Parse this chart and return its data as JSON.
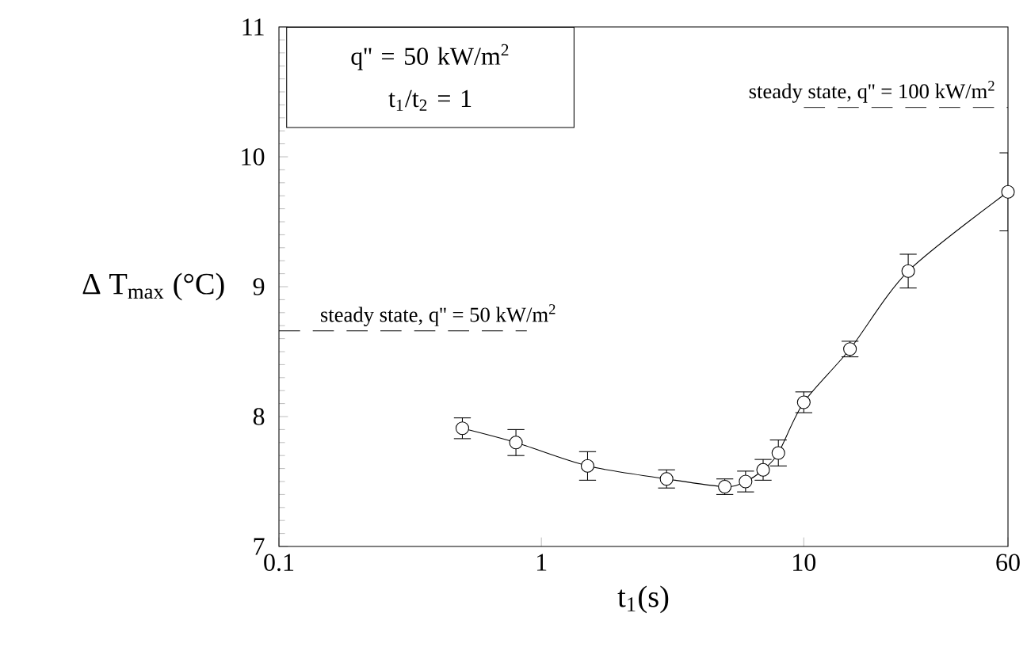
{
  "chart_data": {
    "type": "line",
    "xlabel": "t$_{1}$(s)",
    "ylabel": "Δ T$_{max}$ (°C)",
    "annotations": [
      "q'' = 50 kW/m$^{2}$",
      "t$_{1}$/t$_{2}$ = 1",
      "steady state, q'' = 50 kW/m$^{2}$",
      "steady state, q'' = 100 kW/m$^{2}$"
    ],
    "x": [
      0.5,
      0.8,
      1.5,
      3,
      5,
      6,
      7,
      8,
      10,
      15,
      25,
      60
    ],
    "series": [
      {
        "color": "#000000",
        "values": [
          7.91,
          7.8,
          7.62,
          7.52,
          7.46,
          7.5,
          7.59,
          7.72,
          8.11,
          8.52,
          9.12,
          9.73
        ],
        "errors": [
          0.08,
          0.1,
          0.11,
          0.07,
          0.06,
          0.08,
          0.08,
          0.1,
          0.08,
          0.06,
          0.13,
          0.3
        ]
      }
    ],
    "xlim": [
      0.1,
      60
    ],
    "ylim": [
      7,
      11
    ],
    "xticks": [
      0.1,
      1,
      10,
      60
    ],
    "yticks": [
      7,
      8,
      9,
      10,
      11
    ],
    "log": "x",
    "marker": "circle",
    "line_style": "solid",
    "grid": false,
    "ref_lines": [
      {
        "axis": "y",
        "value": 8.66,
        "line_style": "dashed"
      },
      {
        "axis": "y",
        "value": 10.38,
        "line_style": "dashed"
      }
    ]
  }
}
